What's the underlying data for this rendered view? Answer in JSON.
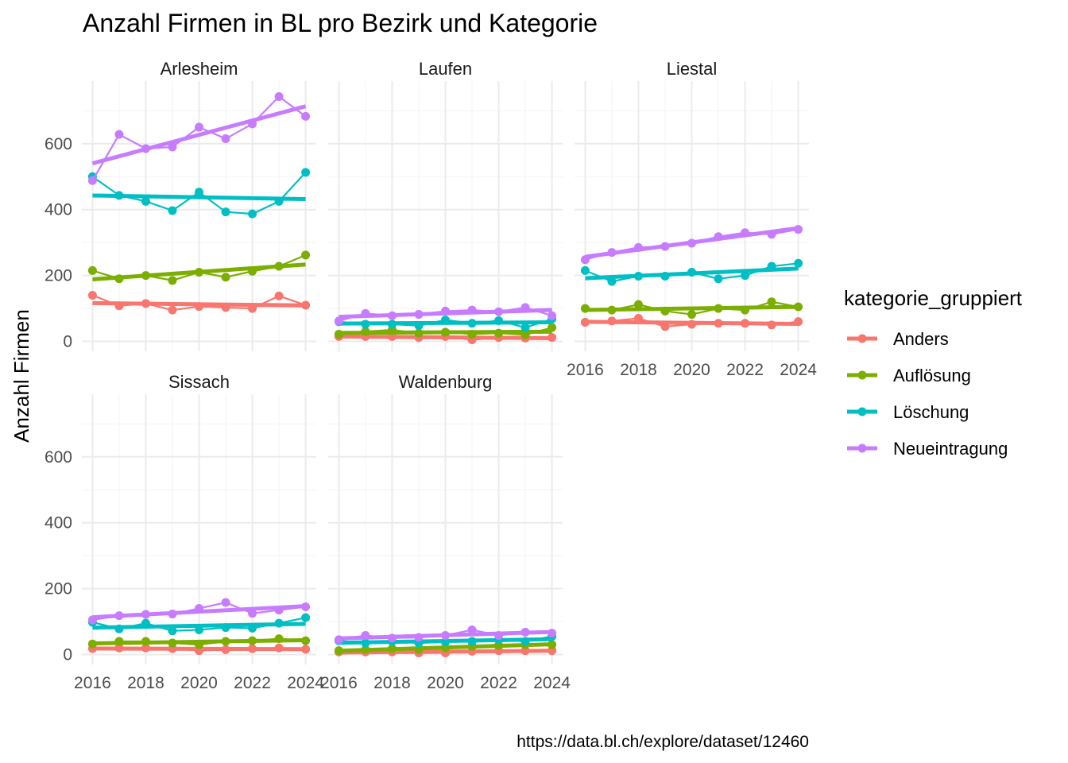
{
  "chart_data": {
    "type": "line",
    "title": "Anzahl Firmen in BL pro Bezirk und Kategorie",
    "ylabel": "Anzahl Firmen",
    "xlabel": "",
    "caption": "https://data.bl.ch/explore/dataset/12460",
    "x": [
      2016,
      2017,
      2018,
      2019,
      2020,
      2021,
      2022,
      2023,
      2024
    ],
    "x_ticks": [
      2016,
      2018,
      2020,
      2022,
      2024
    ],
    "y_ticks": [
      0,
      200,
      400,
      600
    ],
    "ylim": [
      -30,
      790
    ],
    "xlim": [
      2015.6,
      2024.4
    ],
    "grid": true,
    "trend_lines": "linear fit per series",
    "legend": {
      "title": "kategorie_gruppiert",
      "position": "right",
      "entries": [
        {
          "name": "Anders",
          "color": "#F8766D"
        },
        {
          "name": "Auflösung",
          "color": "#7CAE00"
        },
        {
          "name": "Löschung",
          "color": "#00BFC4"
        },
        {
          "name": "Neueintragung",
          "color": "#C77CFF"
        }
      ]
    },
    "panels": [
      {
        "name": "Arlesheim",
        "series": [
          {
            "name": "Anders",
            "values": [
              140,
              108,
              115,
              95,
              106,
              103,
              100,
              138,
              110
            ]
          },
          {
            "name": "Auflösung",
            "values": [
              215,
              190,
              200,
              185,
              210,
              195,
              213,
              228,
              262
            ]
          },
          {
            "name": "Löschung",
            "values": [
              500,
              443,
              425,
              397,
              453,
              393,
              387,
              425,
              513
            ]
          },
          {
            "name": "Neueintragung",
            "values": [
              488,
              628,
              585,
              590,
              650,
              615,
              660,
              743,
              683
            ]
          }
        ]
      },
      {
        "name": "Laufen",
        "series": [
          {
            "name": "Anders",
            "values": [
              15,
              15,
              15,
              12,
              15,
              5,
              12,
              10,
              12
            ]
          },
          {
            "name": "Auflösung",
            "values": [
              22,
              30,
              35,
              25,
              28,
              22,
              25,
              20,
              42
            ]
          },
          {
            "name": "Löschung",
            "values": [
              60,
              52,
              52,
              48,
              65,
              55,
              63,
              42,
              68
            ]
          },
          {
            "name": "Neueintragung",
            "values": [
              62,
              85,
              78,
              82,
              92,
              95,
              90,
              103,
              78
            ]
          }
        ]
      },
      {
        "name": "Liestal",
        "series": [
          {
            "name": "Anders",
            "values": [
              58,
              62,
              70,
              45,
              52,
              55,
              55,
              50,
              60
            ]
          },
          {
            "name": "Auflösung",
            "values": [
              100,
              95,
              112,
              92,
              82,
              100,
              95,
              120,
              105
            ]
          },
          {
            "name": "Löschung",
            "values": [
              215,
              182,
              198,
              198,
              210,
              190,
              200,
              228,
              237
            ]
          },
          {
            "name": "Neueintragung",
            "values": [
              248,
              270,
              285,
              288,
              298,
              318,
              330,
              325,
              340
            ]
          }
        ]
      },
      {
        "name": "Sissach",
        "series": [
          {
            "name": "Anders",
            "values": [
              18,
              20,
              20,
              18,
              12,
              15,
              18,
              20,
              16
            ]
          },
          {
            "name": "Auflösung",
            "values": [
              32,
              40,
              40,
              35,
              30,
              40,
              42,
              48,
              42
            ]
          },
          {
            "name": "Löschung",
            "values": [
              98,
              78,
              95,
              72,
              75,
              82,
              80,
              95,
              112
            ]
          },
          {
            "name": "Neueintragung",
            "values": [
              105,
              118,
              122,
              123,
              140,
              158,
              125,
              135,
              145
            ]
          }
        ]
      },
      {
        "name": "Waldenburg",
        "series": [
          {
            "name": "Anders",
            "values": [
              8,
              8,
              8,
              5,
              5,
              10,
              12,
              12,
              12
            ]
          },
          {
            "name": "Auflösung",
            "values": [
              12,
              15,
              18,
              15,
              20,
              25,
              28,
              30,
              30
            ]
          },
          {
            "name": "Löschung",
            "values": [
              42,
              35,
              40,
              35,
              38,
              40,
              45,
              40,
              55
            ]
          },
          {
            "name": "Neueintragung",
            "values": [
              45,
              58,
              50,
              52,
              58,
              75,
              58,
              68,
              65
            ]
          }
        ]
      }
    ]
  }
}
